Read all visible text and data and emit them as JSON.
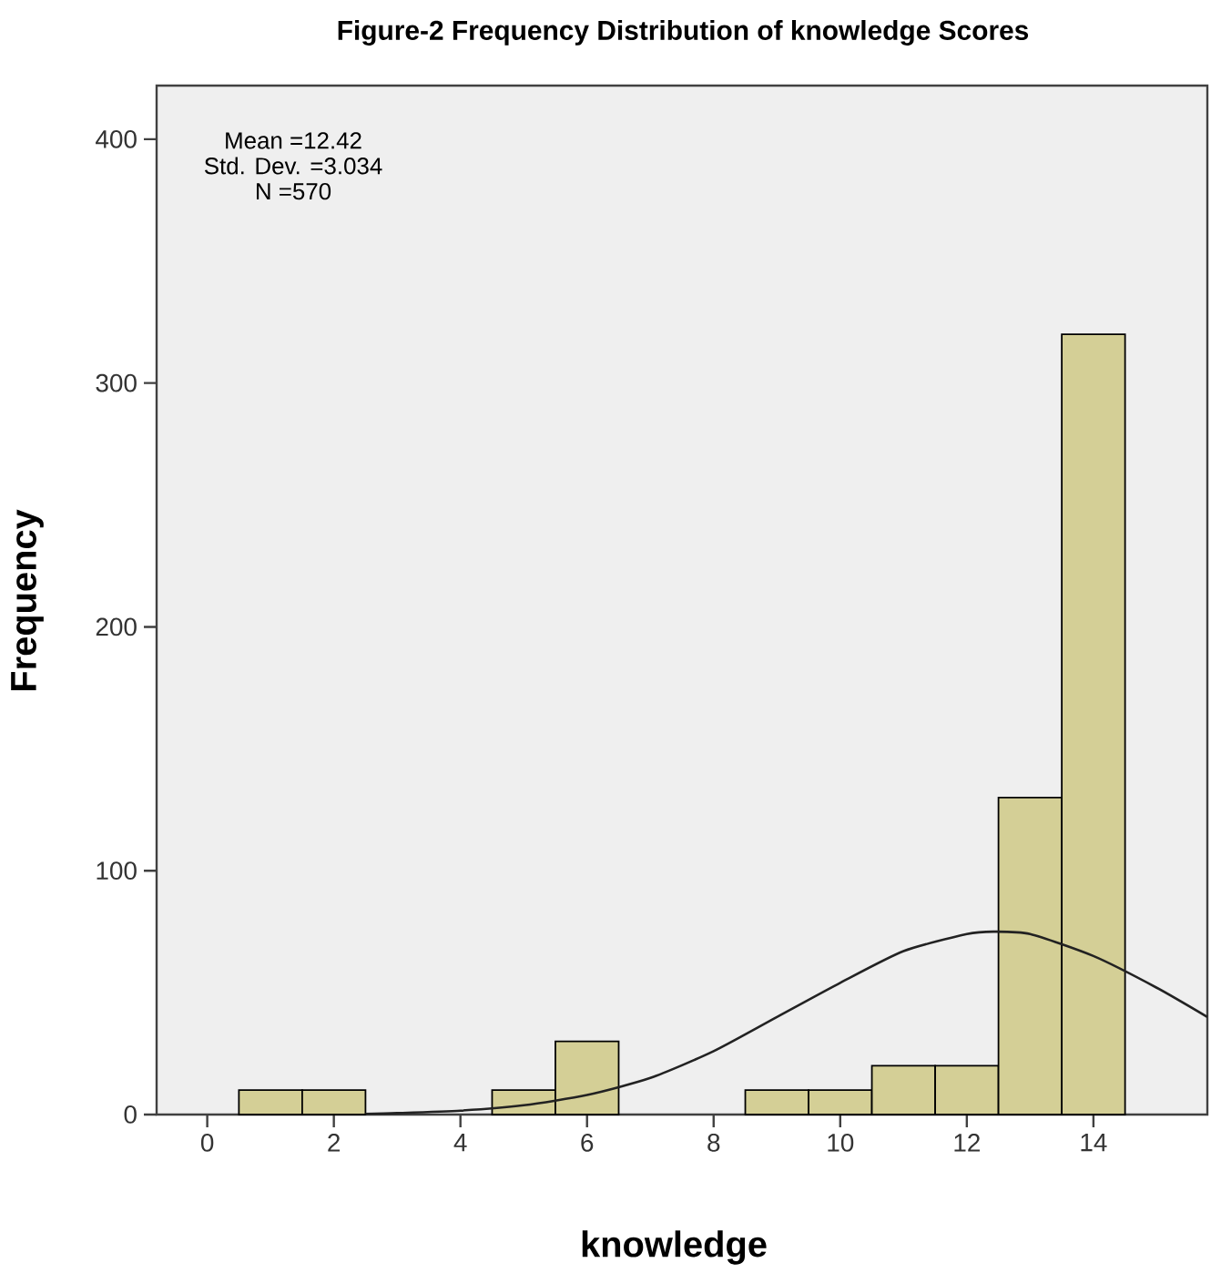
{
  "chart_data": {
    "type": "histogram",
    "title": "Figure-2 Frequency Distribution of knowledge Scores",
    "xlabel": "knowledge",
    "ylabel": "Frequency",
    "bins": [
      0.5,
      1.5,
      2.5,
      3.5,
      4.5,
      5.5,
      6.5,
      7.5,
      8.5,
      9.5,
      10.5,
      11.5,
      12.5,
      13.5,
      14.5
    ],
    "values": [
      10,
      10,
      0,
      0,
      10,
      30,
      0,
      0,
      10,
      10,
      20,
      20,
      130,
      320
    ],
    "color": "#d4cf96",
    "series": [
      {
        "type": "line",
        "color": "#222222",
        "x": [
          2.5,
          3,
          4,
          5,
          6,
          7,
          8,
          9,
          10,
          11,
          12,
          12.42,
          13,
          14,
          15,
          15.8
        ],
        "values": [
          0.3,
          0.6,
          1.6,
          3.8,
          8,
          15,
          26,
          40,
          54,
          67,
          74,
          75,
          74,
          65,
          52,
          40
        ]
      }
    ],
    "annotations": [
      "Mean =12.42",
      "Std. Dev. =3.034",
      "N =570"
    ],
    "xlim": [
      -0.8,
      15.8
    ],
    "ylim": [
      0,
      422
    ],
    "xticks": [
      0,
      2,
      4,
      6,
      8,
      10,
      12,
      14
    ],
    "yticks": [
      0,
      100,
      200,
      300,
      400
    ],
    "grid": false
  }
}
